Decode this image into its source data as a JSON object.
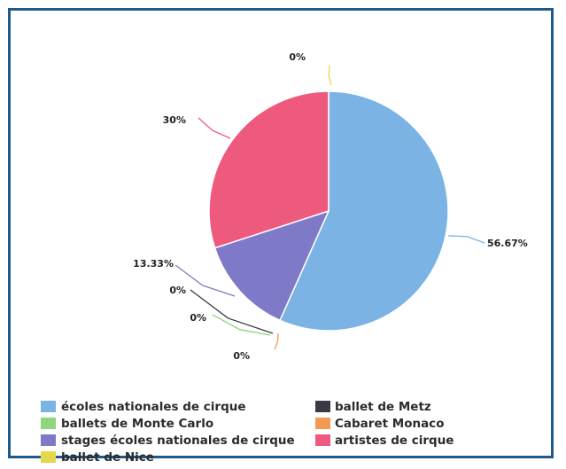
{
  "chart_data": {
    "type": "pie",
    "title": "",
    "slices": [
      {
        "label": "ballet de Nice",
        "value": 0,
        "pct_label": "0%",
        "color": "#e3d94b"
      },
      {
        "label": "écoles nationales de cirque",
        "value": 56.67,
        "pct_label": "56.67%",
        "color": "#7bb3e4"
      },
      {
        "label": "ballet de Metz",
        "value": 0,
        "pct_label": "0%",
        "color": "#3a3a44"
      },
      {
        "label": "ballets de Monte Carlo",
        "value": 0,
        "pct_label": "0%",
        "color": "#8fd67c"
      },
      {
        "label": "Cabaret Monaco",
        "value": 0,
        "pct_label": "0%",
        "color": "#f29a53"
      },
      {
        "label": "stages écoles nationales de cirque",
        "value": 13.33,
        "pct_label": "13.33%",
        "color": "#7f7ac8"
      },
      {
        "label": "artistes de cirque",
        "value": 30,
        "pct_label": "30%",
        "color": "#ee5a7e"
      }
    ],
    "legend": {
      "placement": "bottom",
      "items": [
        {
          "label": "écoles nationales de cirque",
          "color": "#7bb3e4"
        },
        {
          "label": "ballet de Metz",
          "color": "#3a3a44"
        },
        {
          "label": "ballets de Monte Carlo",
          "color": "#8fd67c"
        },
        {
          "label": "Cabaret Monaco",
          "color": "#f29a53"
        },
        {
          "label": "stages écoles nationales de cirque",
          "color": "#7f7ac8"
        },
        {
          "label": "artistes de cirque",
          "color": "#ee5a7e"
        },
        {
          "label": "ballet de Nice",
          "color": "#e3d94b"
        }
      ]
    }
  }
}
